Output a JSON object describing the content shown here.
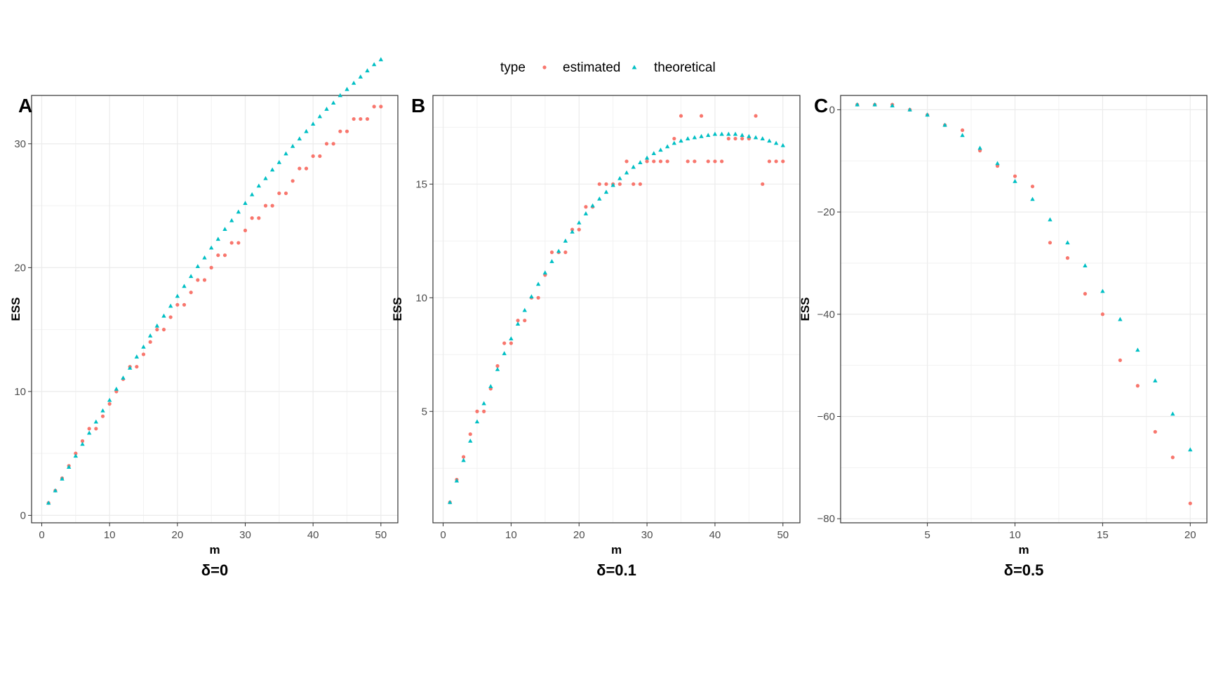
{
  "legend": {
    "title": "type",
    "entries": [
      {
        "label": "estimated",
        "color": "#F8766D",
        "shape": "circle"
      },
      {
        "label": "theoretical",
        "color": "#00BFC4",
        "shape": "triangle"
      }
    ],
    "placement": "top"
  },
  "chart_data": [
    {
      "type": "scatter",
      "panel_tag": "A",
      "caption": "δ=0",
      "xlabel": "m",
      "ylabel": "ESS",
      "xlim": [
        -1.5,
        52.5
      ],
      "ylim": [
        -0.6,
        33.9
      ],
      "xticks": [
        0,
        10,
        20,
        30,
        40,
        50
      ],
      "yticks": [
        0,
        10,
        20,
        30
      ],
      "grid": true,
      "series": [
        {
          "name": "estimated",
          "color": "#F8766D",
          "shape": "circle",
          "x": [
            1,
            2,
            3,
            4,
            5,
            6,
            7,
            8,
            9,
            10,
            11,
            12,
            13,
            14,
            15,
            16,
            17,
            18,
            19,
            20,
            21,
            22,
            23,
            24,
            25,
            26,
            27,
            28,
            29,
            30,
            31,
            32,
            33,
            34,
            35,
            36,
            37,
            38,
            39,
            40,
            41,
            42,
            43,
            44,
            45,
            46,
            47,
            48,
            49,
            50
          ],
          "y": [
            1,
            2,
            3,
            4,
            5,
            6,
            7,
            7,
            8,
            9,
            10,
            11,
            12,
            12,
            13,
            14,
            15,
            15,
            16,
            17,
            17,
            18,
            19,
            19,
            20,
            21,
            21,
            22,
            22,
            23,
            24,
            24,
            25,
            25,
            26,
            26,
            27,
            28,
            28,
            29,
            29,
            30,
            30,
            31,
            31,
            32,
            32,
            32,
            33,
            33
          ]
        },
        {
          "name": "theoretical",
          "color": "#00BFC4",
          "shape": "triangle",
          "x": [
            1,
            2,
            3,
            4,
            5,
            6,
            7,
            8,
            9,
            10,
            11,
            12,
            13,
            14,
            15,
            16,
            17,
            18,
            19,
            20,
            21,
            22,
            23,
            24,
            25,
            26,
            27,
            28,
            29,
            30,
            31,
            32,
            33,
            34,
            35,
            36,
            37,
            38,
            39,
            40,
            41,
            42,
            43,
            44,
            45,
            46,
            47,
            48,
            49,
            50
          ],
          "y": [
            1,
            2,
            2.95,
            3.9,
            4.8,
            5.75,
            6.65,
            7.55,
            8.45,
            9.3,
            10.2,
            11.1,
            11.9,
            12.8,
            13.6,
            14.5,
            15.3,
            16.1,
            16.9,
            17.7,
            18.5,
            19.3,
            20.1,
            20.8,
            21.6,
            22.3,
            23.1,
            23.8,
            24.5,
            25.2,
            25.9,
            26.6,
            27.2,
            27.9,
            28.5,
            29.2,
            29.8,
            30.4,
            31,
            31.6,
            32.2,
            32.8,
            33.3,
            33.9,
            34.4,
            34.9,
            35.4,
            35.9,
            36.4,
            36.8
          ]
        }
      ]
    },
    {
      "type": "scatter",
      "panel_tag": "B",
      "caption": "δ=0.1",
      "xlabel": "m",
      "ylabel": "ESS",
      "xlim": [
        -1.5,
        52.5
      ],
      "ylim": [
        0.1,
        18.9
      ],
      "xticks": [
        0,
        10,
        20,
        30,
        40,
        50
      ],
      "yticks": [
        5,
        10,
        15
      ],
      "grid": true,
      "series": [
        {
          "name": "estimated",
          "color": "#F8766D",
          "shape": "circle",
          "x": [
            1,
            2,
            3,
            4,
            5,
            6,
            7,
            8,
            9,
            10,
            11,
            12,
            13,
            14,
            15,
            16,
            17,
            18,
            19,
            20,
            21,
            22,
            23,
            24,
            25,
            26,
            27,
            28,
            29,
            30,
            31,
            32,
            33,
            34,
            35,
            36,
            37,
            38,
            39,
            40,
            41,
            42,
            43,
            44,
            45,
            46,
            47,
            48,
            49,
            50
          ],
          "y": [
            1,
            2,
            3,
            4,
            5,
            5,
            6,
            7,
            8,
            8,
            9,
            9,
            10,
            10,
            11,
            12,
            12,
            12,
            13,
            13,
            14,
            14,
            15,
            15,
            15,
            15,
            16,
            15,
            15,
            16,
            16,
            16,
            16,
            17,
            18,
            16,
            16,
            18,
            16,
            16,
            16,
            17,
            17,
            17,
            17,
            18,
            15,
            16,
            16,
            16
          ]
        },
        {
          "name": "theoretical",
          "color": "#00BFC4",
          "shape": "triangle",
          "x": [
            1,
            2,
            3,
            4,
            5,
            6,
            7,
            8,
            9,
            10,
            11,
            12,
            13,
            14,
            15,
            16,
            17,
            18,
            19,
            20,
            21,
            22,
            23,
            24,
            25,
            26,
            27,
            28,
            29,
            30,
            31,
            32,
            33,
            34,
            35,
            36,
            37,
            38,
            39,
            40,
            41,
            42,
            43,
            44,
            45,
            46,
            47,
            48,
            49,
            50
          ],
          "y": [
            1,
            1.95,
            2.85,
            3.7,
            4.55,
            5.35,
            6.1,
            6.85,
            7.55,
            8.2,
            8.85,
            9.45,
            10.05,
            10.6,
            11.1,
            11.6,
            12.05,
            12.5,
            12.9,
            13.3,
            13.7,
            14.05,
            14.35,
            14.65,
            14.95,
            15.25,
            15.5,
            15.75,
            15.95,
            16.15,
            16.35,
            16.5,
            16.65,
            16.8,
            16.9,
            17,
            17.05,
            17.1,
            17.15,
            17.2,
            17.2,
            17.2,
            17.2,
            17.15,
            17.1,
            17.05,
            17,
            16.9,
            16.8,
            16.7
          ]
        }
      ]
    },
    {
      "type": "scatter",
      "panel_tag": "C",
      "caption": "δ=0.5",
      "xlabel": "m",
      "ylabel": "ESS",
      "xlim": [
        0.05,
        20.95
      ],
      "ylim": [
        -80.8,
        2.8
      ],
      "xticks": [
        5,
        10,
        15,
        20
      ],
      "yticks": [
        0,
        -20,
        -40,
        -60,
        -80
      ],
      "grid": true,
      "series": [
        {
          "name": "estimated",
          "color": "#F8766D",
          "shape": "circle",
          "x": [
            1,
            2,
            3,
            4,
            5,
            6,
            7,
            8,
            9,
            10,
            11,
            12,
            13,
            14,
            15,
            16,
            17,
            18,
            19,
            20
          ],
          "y": [
            1,
            1,
            1,
            0,
            -1,
            -3,
            -4,
            -8,
            -11,
            -13,
            -15,
            -26,
            -29,
            -36,
            -40,
            -49,
            -54,
            -63,
            -68,
            -77
          ]
        },
        {
          "name": "theoretical",
          "color": "#00BFC4",
          "shape": "triangle",
          "x": [
            1,
            2,
            3,
            4,
            5,
            6,
            7,
            8,
            9,
            10,
            11,
            12,
            13,
            14,
            15,
            16,
            17,
            18,
            19,
            20
          ],
          "y": [
            1,
            1,
            0.8,
            0,
            -1,
            -3,
            -5,
            -7.5,
            -10.5,
            -14,
            -17.5,
            -21.5,
            -26,
            -30.5,
            -35.5,
            -41,
            -47,
            -53,
            -59.5,
            -66.5
          ]
        }
      ]
    }
  ]
}
